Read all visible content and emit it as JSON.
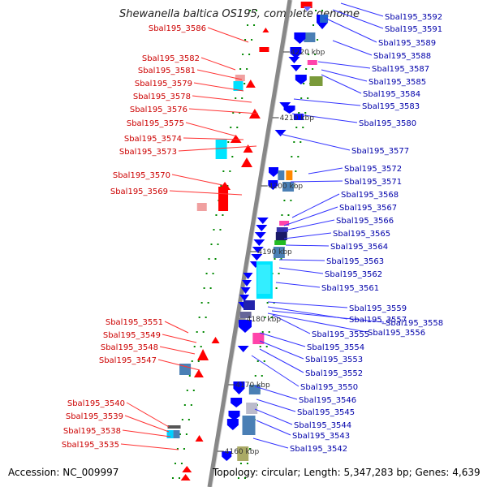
{
  "header": {
    "title": "Shewanella baltica OS195, complete genome"
  },
  "footer": {
    "accession": "Accession: NC_009997",
    "summary": "Topology: circular; Length: 5,347,283 bp; Genes: 4,639"
  },
  "colors": {
    "reverse_label": "#cc0000",
    "forward_label": "#0000aa",
    "reverse_gene": "#ff0000",
    "forward_gene": "#0000ff",
    "backbone": "#888888",
    "tick_dot": "#008800"
  },
  "scale_labels": [
    "4220 kbp",
    "4210 kbp",
    "4200 kbp",
    "4190 kbp",
    "4180 kbp",
    "4170 kbp",
    "4160 kbp"
  ],
  "genes_reverse": [
    "Sbal195_3586",
    "Sbal195_3582",
    "Sbal195_3581",
    "Sbal195_3579",
    "Sbal195_3578",
    "Sbal195_3576",
    "Sbal195_3575",
    "Sbal195_3574",
    "Sbal195_3573",
    "Sbal195_3570",
    "Sbal195_3569",
    "Sbal195_3551",
    "Sbal195_3549",
    "Sbal195_3548",
    "Sbal195_3547",
    "Sbal195_3540",
    "Sbal195_3539",
    "Sbal195_3538",
    "Sbal195_3535"
  ],
  "genes_forward": [
    "Sbal195_3592",
    "Sbal195_3591",
    "Sbal195_3589",
    "Sbal195_3588",
    "Sbal195_3587",
    "Sbal195_3585",
    "Sbal195_3584",
    "Sbal195_3583",
    "Sbal195_3580",
    "Sbal195_3577",
    "Sbal195_3572",
    "Sbal195_3571",
    "Sbal195_3568",
    "Sbal195_3567",
    "Sbal195_3566",
    "Sbal195_3565",
    "Sbal195_3564",
    "Sbal195_3563",
    "Sbal195_3562",
    "Sbal195_3561",
    "Sbal195_3559",
    "Sbal195_3557",
    "Sbal195_3558",
    "Sbal195_3555",
    "Sbal195_3556",
    "Sbal195_3554",
    "Sbal195_3553",
    "Sbal195_3552",
    "Sbal195_3550",
    "Sbal195_3546",
    "Sbal195_3545",
    "Sbal195_3544",
    "Sbal195_3543",
    "Sbal195_3542"
  ]
}
